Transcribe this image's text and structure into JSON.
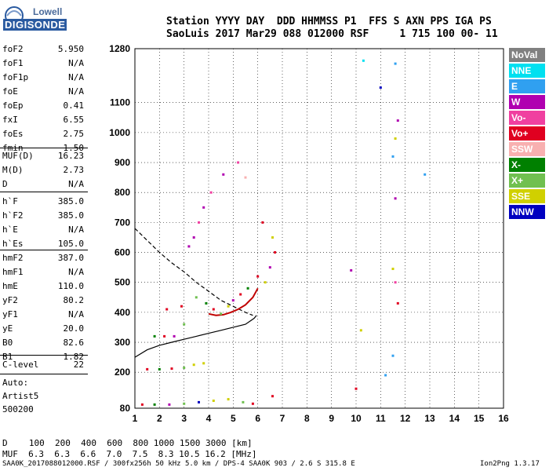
{
  "logo": {
    "line1": "Lowell",
    "line2": "DIGISONDE"
  },
  "header": {
    "line1": "Station YYYY DAY  DDD HHMMSS P1  FFS S AXN PPS IGA PS",
    "line2": "SaoLuis 2017 Mar29 088 012000 RSF     1 715 100 00- 11"
  },
  "params": {
    "group1": [
      {
        "label": "foF2",
        "value": "5.950"
      },
      {
        "label": "foF1",
        "value": "N/A"
      },
      {
        "label": "foF1p",
        "value": "N/A"
      },
      {
        "label": "foE",
        "value": "N/A"
      },
      {
        "label": "foEp",
        "value": "0.41"
      },
      {
        "label": "fxI",
        "value": "6.55"
      },
      {
        "label": "foEs",
        "value": "2.75"
      },
      {
        "label": "fmin",
        "value": "1.50"
      }
    ],
    "group2": [
      {
        "label": "MUF(D)",
        "value": "16.23"
      },
      {
        "label": "M(D)",
        "value": "2.73"
      },
      {
        "label": "D",
        "value": "N/A"
      }
    ],
    "group3": [
      {
        "label": "h`F",
        "value": "385.0"
      },
      {
        "label": "h`F2",
        "value": "385.0"
      },
      {
        "label": "h`E",
        "value": "N/A"
      },
      {
        "label": "h`Es",
        "value": "105.0"
      }
    ],
    "group4": [
      {
        "label": "hmF2",
        "value": "387.0"
      },
      {
        "label": "hmF1",
        "value": "N/A"
      },
      {
        "label": "hmE",
        "value": "110.0"
      },
      {
        "label": "yF2",
        "value": "80.2"
      },
      {
        "label": "yF1",
        "value": "N/A"
      },
      {
        "label": "yE",
        "value": "20.0"
      },
      {
        "label": "B0",
        "value": "82.6"
      },
      {
        "label": "B1",
        "value": "1.82"
      }
    ],
    "group5": [
      {
        "label": "C-level",
        "value": "22"
      }
    ]
  },
  "auto": {
    "line1": "Auto:",
    "line2": "Artist5",
    "line3": "500200"
  },
  "legend": [
    {
      "name": "NoVal",
      "color": "#808080"
    },
    {
      "name": "NNE",
      "color": "#00e0f0"
    },
    {
      "name": "E",
      "color": "#30a0f0"
    },
    {
      "name": "W",
      "color": "#b000b0"
    },
    {
      "name": "Vo-",
      "color": "#f040a0"
    },
    {
      "name": "Vo+",
      "color": "#e00020"
    },
    {
      "name": "SSW",
      "color": "#f8b0b0"
    },
    {
      "name": "X-",
      "color": "#008000"
    },
    {
      "name": "X+",
      "color": "#70c050"
    },
    {
      "name": "SSE",
      "color": "#d0d000"
    },
    {
      "name": "NNW",
      "color": "#0000c0"
    }
  ],
  "distance_table": {
    "d_label": "D",
    "d_values": "  100  200  400  600  800 1000 1500 3000 [km]",
    "muf_label": "MUF",
    "muf_values": "  6.3  6.3  6.6  7.0  7.5  8.3 10.5 16.2 [MHz]"
  },
  "footer": {
    "left": "SAA0K_2017088012000.RSF / 300fx256h 50 kHz 5.0 km / DPS-4 SAA0K 903 / 2.6 S 315.8 E",
    "right": "Ion2Png 1.3.17"
  },
  "chart_data": {
    "type": "scatter",
    "xlim": [
      1,
      16
    ],
    "ylim": [
      80,
      1280
    ],
    "x_ticks": [
      1,
      2,
      3,
      4,
      5,
      6,
      7,
      8,
      9,
      10,
      11,
      12,
      13,
      14,
      15,
      16
    ],
    "y_ticks": [
      80,
      200,
      300,
      400,
      500,
      600,
      700,
      800,
      900,
      1000,
      1100,
      1280
    ],
    "grid": true,
    "traces": [
      {
        "name": "profile-dashed",
        "style": "dashed",
        "x": [
          1.0,
          1.5,
          2.0,
          2.5,
          3.0,
          3.5,
          4.0,
          4.5,
          5.0,
          5.5,
          5.8
        ],
        "y": [
          680,
          640,
          600,
          565,
          535,
          500,
          470,
          440,
          420,
          400,
          390
        ]
      },
      {
        "name": "profile-solid",
        "style": "solid",
        "x": [
          1.0,
          1.5,
          2.0,
          2.5,
          3.0,
          3.5,
          4.0,
          4.5,
          5.0,
          5.5,
          5.85,
          5.95
        ],
        "y": [
          250,
          275,
          290,
          300,
          310,
          320,
          330,
          340,
          350,
          360,
          380,
          390
        ]
      },
      {
        "name": "fitted-trace",
        "style": "solid",
        "color": "#c00000",
        "x": [
          4.0,
          4.3,
          4.6,
          4.9,
          5.2,
          5.5,
          5.8,
          6.0
        ],
        "y": [
          395,
          390,
          392,
          400,
          410,
          425,
          450,
          480
        ]
      }
    ],
    "points": [
      {
        "x": 3.2,
        "y": 620,
        "c": "W"
      },
      {
        "x": 3.4,
        "y": 650,
        "c": "W"
      },
      {
        "x": 3.6,
        "y": 700,
        "c": "Vo-"
      },
      {
        "x": 3.8,
        "y": 750,
        "c": "W"
      },
      {
        "x": 4.1,
        "y": 800,
        "c": "Vo-"
      },
      {
        "x": 4.6,
        "y": 860,
        "c": "W"
      },
      {
        "x": 5.2,
        "y": 900,
        "c": "Vo-"
      },
      {
        "x": 5.5,
        "y": 850,
        "c": "SSW"
      },
      {
        "x": 6.2,
        "y": 700,
        "c": "Vo+"
      },
      {
        "x": 6.6,
        "y": 650,
        "c": "SSE"
      },
      {
        "x": 6.7,
        "y": 600,
        "c": "Vo+"
      },
      {
        "x": 6.5,
        "y": 550,
        "c": "W"
      },
      {
        "x": 3.5,
        "y": 450,
        "c": "X+"
      },
      {
        "x": 3.9,
        "y": 430,
        "c": "X-"
      },
      {
        "x": 4.2,
        "y": 410,
        "c": "Vo+"
      },
      {
        "x": 4.5,
        "y": 395,
        "c": "X+"
      },
      {
        "x": 4.8,
        "y": 420,
        "c": "SSE"
      },
      {
        "x": 5.0,
        "y": 440,
        "c": "W"
      },
      {
        "x": 5.3,
        "y": 460,
        "c": "Vo+"
      },
      {
        "x": 5.6,
        "y": 480,
        "c": "X-"
      },
      {
        "x": 6.0,
        "y": 520,
        "c": "Vo+"
      },
      {
        "x": 6.3,
        "y": 500,
        "c": "SSE"
      },
      {
        "x": 3.0,
        "y": 360,
        "c": "X+"
      },
      {
        "x": 2.9,
        "y": 420,
        "c": "Vo+"
      },
      {
        "x": 2.3,
        "y": 410,
        "c": "Vo+"
      },
      {
        "x": 1.8,
        "y": 320,
        "c": "X-"
      },
      {
        "x": 2.2,
        "y": 320,
        "c": "Vo+"
      },
      {
        "x": 2.6,
        "y": 320,
        "c": "W"
      },
      {
        "x": 1.5,
        "y": 210,
        "c": "Vo+"
      },
      {
        "x": 2.0,
        "y": 210,
        "c": "X-"
      },
      {
        "x": 2.5,
        "y": 212,
        "c": "Vo+"
      },
      {
        "x": 3.0,
        "y": 215,
        "c": "X+"
      },
      {
        "x": 3.4,
        "y": 225,
        "c": "SSE"
      },
      {
        "x": 3.8,
        "y": 230,
        "c": "SSE"
      },
      {
        "x": 1.3,
        "y": 92,
        "c": "Vo+"
      },
      {
        "x": 1.8,
        "y": 92,
        "c": "X-"
      },
      {
        "x": 2.4,
        "y": 92,
        "c": "W"
      },
      {
        "x": 3.0,
        "y": 95,
        "c": "X+"
      },
      {
        "x": 3.6,
        "y": 100,
        "c": "NNW"
      },
      {
        "x": 4.2,
        "y": 105,
        "c": "SSE"
      },
      {
        "x": 4.8,
        "y": 110,
        "c": "SSE"
      },
      {
        "x": 5.4,
        "y": 100,
        "c": "X+"
      },
      {
        "x": 5.8,
        "y": 95,
        "c": "Vo+"
      },
      {
        "x": 6.6,
        "y": 120,
        "c": "Vo+"
      },
      {
        "x": 9.8,
        "y": 540,
        "c": "W"
      },
      {
        "x": 10.0,
        "y": 145,
        "c": "Vo+"
      },
      {
        "x": 10.3,
        "y": 1240,
        "c": "NNE"
      },
      {
        "x": 11.0,
        "y": 1150,
        "c": "NNW"
      },
      {
        "x": 11.2,
        "y": 190,
        "c": "E"
      },
      {
        "x": 11.6,
        "y": 1230,
        "c": "E"
      },
      {
        "x": 11.7,
        "y": 1040,
        "c": "W"
      },
      {
        "x": 11.5,
        "y": 920,
        "c": "E"
      },
      {
        "x": 11.6,
        "y": 980,
        "c": "SSE"
      },
      {
        "x": 11.6,
        "y": 780,
        "c": "W"
      },
      {
        "x": 11.5,
        "y": 545,
        "c": "SSE"
      },
      {
        "x": 11.7,
        "y": 430,
        "c": "Vo+"
      },
      {
        "x": 11.5,
        "y": 255,
        "c": "E"
      },
      {
        "x": 12.8,
        "y": 860,
        "c": "E"
      },
      {
        "x": 10.2,
        "y": 340,
        "c": "SSE"
      },
      {
        "x": 11.6,
        "y": 500,
        "c": "Vo-"
      }
    ]
  }
}
